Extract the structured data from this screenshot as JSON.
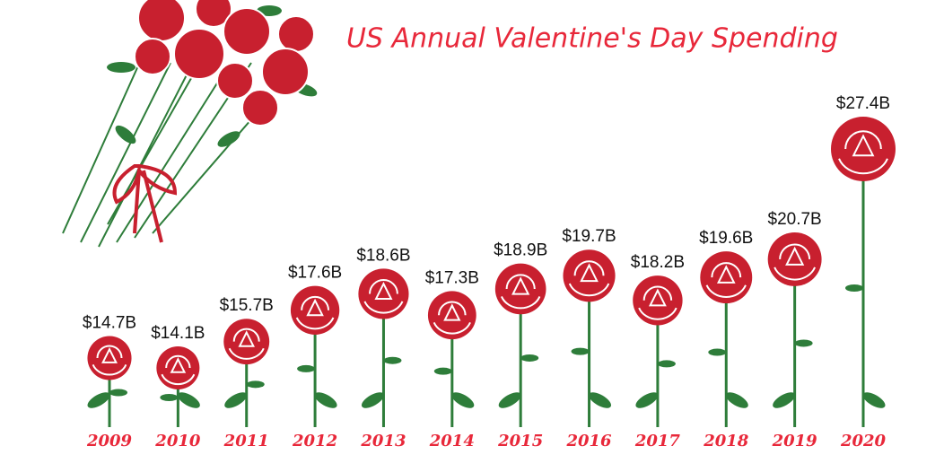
{
  "chart_data": {
    "type": "rose-bar",
    "title": "US Annual Valentine's Day Spending",
    "categories": [
      "2009",
      "2010",
      "2011",
      "2012",
      "2013",
      "2014",
      "2015",
      "2016",
      "2017",
      "2018",
      "2019",
      "2020"
    ],
    "values": [
      14.7,
      14.1,
      15.7,
      17.6,
      18.6,
      17.3,
      18.9,
      19.7,
      18.2,
      19.6,
      20.7,
      27.4
    ],
    "value_labels": [
      "$14.7B",
      "$14.1B",
      "$15.7B",
      "$17.6B",
      "$18.6B",
      "$17.3B",
      "$18.9B",
      "$19.7B",
      "$18.2B",
      "$19.6B",
      "$20.7B",
      "$27.4B"
    ],
    "color": "#c8202f"
  }
}
